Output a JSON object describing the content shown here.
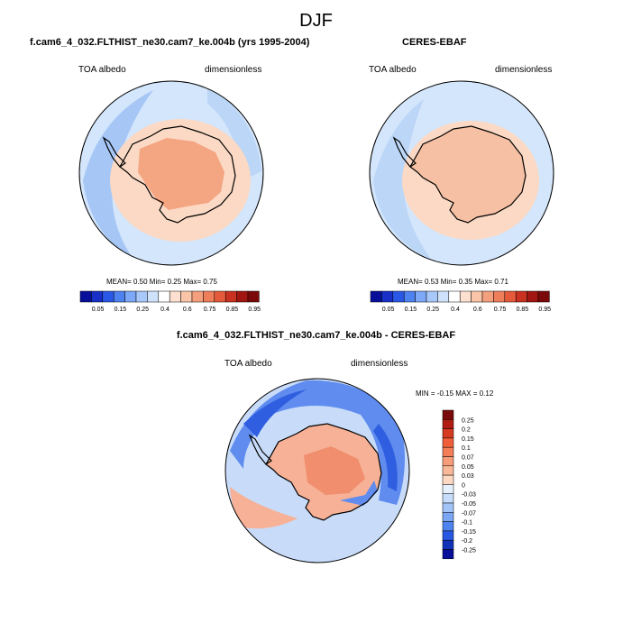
{
  "figure": {
    "season": "DJF",
    "panels": [
      {
        "title": "f.cam6_4_032.FLTHIST_ne30.cam7_ke.004b (yrs 1995-2004)",
        "left_label": "TOA albedo",
        "right_label": "dimensionless",
        "stats": "MEAN=   0.50  Min=   0.25  Max=   0.75"
      },
      {
        "title": "CERES-EBAF",
        "left_label": "TOA albedo",
        "right_label": "dimensionless",
        "stats": "MEAN=   0.53  Min=   0.35  Max=   0.71"
      },
      {
        "title": "f.cam6_4_032.FLTHIST_ne30.cam7_ke.004b - CERES-EBAF",
        "left_label": "TOA albedo",
        "right_label": "dimensionless",
        "stats": "MIN = -0.15 MAX =   0.12"
      }
    ],
    "abs_colorbar": {
      "labels": [
        "0.05",
        "0.15",
        "0.25",
        "0.4",
        "0.6",
        "0.75",
        "0.85",
        "0.95"
      ],
      "colors": [
        "#08109a",
        "#1830c8",
        "#2a58e6",
        "#4e82f0",
        "#7ea8f8",
        "#a8c8fa",
        "#cfe2fb",
        "#ffffff",
        "#fde0cf",
        "#f9c4a7",
        "#f4a07e",
        "#ef7e5a",
        "#e45a3a",
        "#c93220",
        "#a11610",
        "#7a0a0a"
      ]
    },
    "diff_colorbar": {
      "labels": [
        "0.25",
        "0.2",
        "0.15",
        "0.1",
        "0.07",
        "0.05",
        "0.03",
        "0",
        "-0.03",
        "-0.05",
        "-0.07",
        "-0.1",
        "-0.15",
        "-0.2",
        "-0.25"
      ],
      "colors": [
        "#7a0a0a",
        "#b01c12",
        "#d63a22",
        "#ef5e3a",
        "#f47e58",
        "#f79c78",
        "#f9b898",
        "#fdd8c2",
        "#e6f0fd",
        "#c6dcfb",
        "#a2c4f8",
        "#7aa6f4",
        "#4e82ee",
        "#2858e2",
        "#1232b8",
        "#08109a"
      ]
    },
    "map_colors": {
      "ocean_abs": "#d4e6fb",
      "ocean_light": "#bcd6f8",
      "ocean_mid": "#a6c6f6",
      "land_outer": "#fbd9c4",
      "land_inner": "#f4a582",
      "land_ceres": "#f5c0a3",
      "diff_blue_dark": "#2f5fe0",
      "diff_blue": "#5f8cee",
      "diff_light": "#c8dcfa",
      "diff_red": "#f6b196",
      "diff_red_dark": "#f08e6e"
    }
  }
}
